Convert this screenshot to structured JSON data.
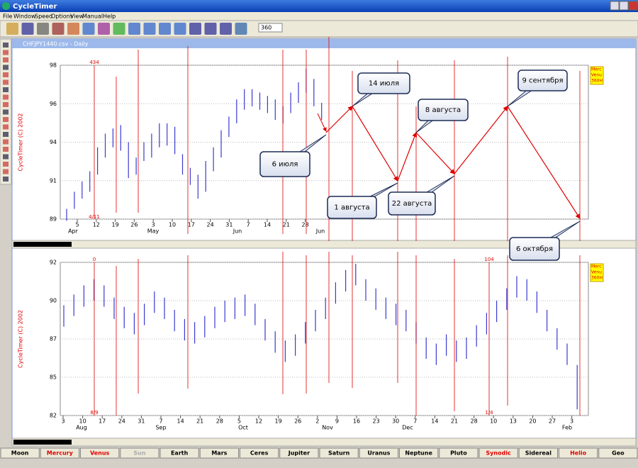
{
  "app_title": "CycleTimer",
  "menu": [
    "File",
    "Window",
    "Speed",
    "Options",
    "View",
    "Manual",
    "Help"
  ],
  "toolbar": {
    "input": "360"
  },
  "document_title": "CHFJPY1440.csv - Daily",
  "chart_data": [
    {
      "type": "ohlc",
      "copyright": "CycleTimer (C) 2002",
      "bar_color": "#3a3ad0",
      "grid": true,
      "high": [
        89.6,
        90.6,
        91.2,
        91.8,
        93.2,
        94.0,
        94.3,
        94.5,
        93.5,
        92.6,
        93.5,
        94.0,
        94.6,
        94.6,
        94.4,
        92.8,
        92.0,
        91.6,
        92.4,
        93.2,
        94.2,
        95.0,
        96.0,
        96.6,
        96.6,
        96.4,
        96.2,
        96.0,
        95.6,
        96.4,
        97.0,
        97.8,
        97.2,
        95.8
      ],
      "low": [
        88.9,
        89.6,
        90.2,
        90.6,
        91.6,
        92.6,
        93.2,
        93.0,
        91.4,
        91.6,
        92.4,
        92.6,
        93.2,
        93.3,
        92.8,
        91.6,
        91.0,
        90.2,
        90.6,
        91.8,
        92.6,
        93.8,
        94.6,
        95.4,
        95.6,
        95.4,
        95.2,
        94.8,
        94.6,
        95.2,
        95.8,
        96.4,
        95.6,
        94.8
      ],
      "ylim": [
        89,
        98
      ],
      "yticks": [
        89,
        {
          "value": 91.25,
          "label": "91"
        },
        {
          "value": 93.5,
          "label": "94"
        },
        {
          "value": 95.75,
          "label": "96"
        },
        98
      ],
      "x_labels": [
        "5",
        "12",
        "19",
        "26",
        "3",
        "10",
        "17",
        "24",
        "31",
        "7",
        "14",
        "21",
        "28"
      ],
      "month_labels": [
        "Apr",
        "May",
        "Jun",
        "Jun"
      ],
      "cycle_labels": [
        "434",
        "4/11"
      ],
      "legend": [
        "Merc",
        "Venu",
        "360H"
      ]
    },
    {
      "type": "ohlc",
      "copyright": "CycleTimer (C) 2002",
      "bar_color": "#3a3ad0",
      "grid": true,
      "high": [
        89.2,
        89.9,
        90.5,
        90.9,
        90.5,
        89.7,
        89.1,
        88.7,
        89.3,
        90.1,
        89.7,
        88.9,
        88.3,
        88.1,
        88.5,
        89.1,
        89.5,
        89.7,
        89.9,
        89.3,
        88.3,
        87.5,
        86.9,
        87.3,
        88.1,
        88.9,
        89.7,
        90.7,
        91.5,
        91.9,
        90.9,
        90.3,
        89.7,
        89.3,
        88.9,
        88.1,
        87.1,
        86.7,
        87.3,
        86.9,
        87.1,
        87.9,
        88.7,
        89.5,
        90.3,
        91.1,
        90.9,
        90.1,
        88.9,
        87.7,
        86.7,
        85.3
      ],
      "low": [
        87.8,
        88.5,
        89.1,
        89.5,
        89.1,
        88.3,
        87.7,
        87.3,
        87.9,
        88.7,
        88.3,
        87.5,
        86.9,
        86.7,
        87.1,
        87.7,
        88.1,
        88.3,
        88.5,
        87.9,
        86.9,
        86.1,
        85.5,
        85.9,
        86.7,
        87.5,
        88.3,
        89.3,
        90.1,
        90.5,
        89.5,
        88.9,
        88.3,
        87.9,
        87.5,
        86.7,
        85.7,
        85.3,
        85.9,
        85.5,
        85.7,
        86.5,
        87.3,
        88.1,
        88.9,
        89.7,
        89.5,
        88.7,
        87.5,
        86.3,
        85.3,
        82.4
      ],
      "ylim": [
        82,
        92
      ],
      "yticks": [
        82,
        {
          "value": 84.5,
          "label": "85"
        },
        87,
        {
          "value": 89.5,
          "label": "90"
        },
        92
      ],
      "x_labels": [
        "3",
        "10",
        "17",
        "24",
        "31",
        "7",
        "14",
        "21",
        "28",
        "5",
        "12",
        "19",
        "26",
        "2",
        "9",
        "16",
        "23",
        "30",
        "7",
        "14",
        "21",
        "28",
        "10",
        "13",
        "20",
        "27",
        "3"
      ],
      "month_labels": [
        "Aug",
        "Sep",
        "Oct",
        "Nov",
        "Dec",
        "Feb"
      ],
      "cycle_labels": [
        "0",
        "8/9",
        "104",
        "1/4"
      ],
      "legend": [
        "Merc",
        "Venu",
        "360H"
      ]
    }
  ],
  "annotations": [
    "14 июля",
    "8 августа",
    "9 сентября",
    "6 июля",
    "1 августа",
    "22 августа",
    "6 октября"
  ],
  "tabs": [
    "Moon",
    "Mercury",
    "Venus",
    "Sun",
    "Earth",
    "Mars",
    "Ceres",
    "Jupiter",
    "Saturn",
    "Uranus",
    "Neptune",
    "Pluto",
    "Synodic",
    "Sidereal",
    "Helio",
    "Geo"
  ]
}
